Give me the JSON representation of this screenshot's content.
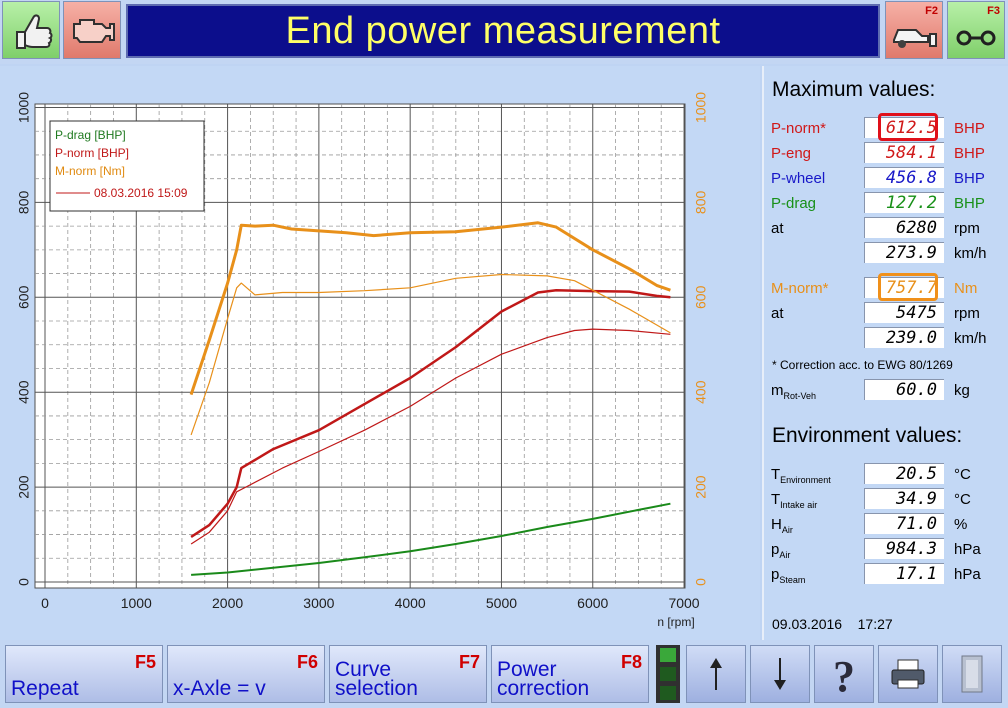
{
  "header": {
    "title": "End power measurement",
    "f2_key": "F2",
    "f3_key": "F3",
    "icons": [
      "thumbs-up-icon",
      "engine-icon",
      "car-on-dyno-icon",
      "roller-icon"
    ]
  },
  "chart_data": {
    "type": "line",
    "xlabel": "n [rpm]",
    "x_ticks": [
      "0",
      "1000",
      "2000",
      "3000",
      "4000",
      "5000",
      "6000",
      "7000"
    ],
    "y_left_ticks": [
      "0",
      "200",
      "400",
      "600",
      "800",
      "1000"
    ],
    "y_right_ticks": [
      "0",
      "200",
      "400",
      "600",
      "800",
      "1000"
    ],
    "xlim": [
      0,
      7000
    ],
    "ylim": [
      0,
      1000
    ],
    "grid": true,
    "legend_position": "top-left",
    "legend": [
      {
        "label": "P-drag [BHP]",
        "color": "#207a20"
      },
      {
        "label": "P-norm [BHP]",
        "color": "#c01818"
      },
      {
        "label": "M-norm [Nm]",
        "color": "#e08a10"
      }
    ],
    "legend_note": "08.03.2016 15:09",
    "series": [
      {
        "name": "P-drag [BHP]",
        "color": "#1a8a1a",
        "width": 2,
        "x": [
          1600,
          2000,
          2500,
          3000,
          3500,
          4000,
          4500,
          5000,
          5500,
          6000,
          6500,
          6850
        ],
        "y": [
          15,
          20,
          30,
          40,
          52,
          65,
          80,
          97,
          116,
          133,
          152,
          165
        ]
      },
      {
        "name": "P-norm [BHP]",
        "color": "#c01818",
        "width": 2.5,
        "x": [
          1600,
          1800,
          2000,
          2100,
          2150,
          2500,
          3000,
          3500,
          4000,
          4500,
          5000,
          5400,
          5600,
          6000,
          6400,
          6700,
          6850
        ],
        "y": [
          95,
          120,
          165,
          200,
          240,
          280,
          320,
          375,
          430,
          495,
          570,
          610,
          615,
          613,
          612,
          603,
          600
        ]
      },
      {
        "name": "M-norm [Nm]",
        "color": "#e8901a",
        "width": 3,
        "x": [
          1600,
          1800,
          2000,
          2100,
          2150,
          2300,
          2500,
          2700,
          3000,
          3300,
          3600,
          4000,
          4500,
          5000,
          5400,
          5600,
          6000,
          6400,
          6700,
          6850
        ],
        "y": [
          395,
          510,
          630,
          700,
          752,
          750,
          752,
          744,
          740,
          736,
          730,
          736,
          738,
          748,
          757,
          748,
          700,
          660,
          625,
          615
        ]
      },
      {
        "name": "P-norm [BHP] 08.03.2016",
        "color": "#c01818",
        "width": 1.2,
        "x": [
          1600,
          1800,
          2000,
          2100,
          2200,
          2600,
          3000,
          3500,
          4000,
          4500,
          5000,
          5500,
          5800,
          6000,
          6400,
          6850
        ],
        "y": [
          80,
          105,
          150,
          190,
          200,
          240,
          275,
          320,
          370,
          430,
          480,
          515,
          530,
          533,
          530,
          522
        ]
      },
      {
        "name": "M-norm [Nm] 08.03.2016",
        "color": "#e8901a",
        "width": 1.2,
        "x": [
          1600,
          1800,
          2000,
          2100,
          2150,
          2300,
          2600,
          3000,
          3500,
          4000,
          4500,
          5000,
          5500,
          5800,
          6000,
          6400,
          6850
        ],
        "y": [
          310,
          420,
          555,
          620,
          630,
          605,
          610,
          610,
          614,
          620,
          640,
          648,
          645,
          635,
          615,
          575,
          525
        ]
      }
    ]
  },
  "max_values": {
    "title": "Maximum values:",
    "rows": [
      {
        "label": "P-norm*",
        "value": "612.5",
        "unit": "BHP",
        "color": "#d01818",
        "highlight": "#e0101a"
      },
      {
        "label": "P-eng",
        "value": "584.1",
        "unit": "BHP",
        "color": "#d01818"
      },
      {
        "label": "P-wheel",
        "value": "456.8",
        "unit": "BHP",
        "color": "#1818c8"
      },
      {
        "label": "P-drag",
        "value": "127.2",
        "unit": "BHP",
        "color": "#189018"
      },
      {
        "label": "at",
        "value": "6280",
        "unit": "rpm",
        "color": "#000000"
      },
      {
        "label": "",
        "value": "273.9",
        "unit": "km/h",
        "color": "#000000"
      },
      {
        "label": "M-norm*",
        "value": "757.7",
        "unit": "Nm",
        "color": "#e8901a",
        "highlight": "#f0901a"
      },
      {
        "label": "at",
        "value": "5475",
        "unit": "rpm",
        "color": "#000000"
      },
      {
        "label": "",
        "value": "239.0",
        "unit": "km/h",
        "color": "#000000"
      }
    ],
    "note": "* Correction acc. to EWG 80/1269",
    "mrot": {
      "label_main": "m",
      "label_sub": "Rot-Veh",
      "value": "60.0",
      "unit": "kg"
    }
  },
  "environment": {
    "title": "Environment values:",
    "rows": [
      {
        "label_main": "T",
        "label_sub": "Environment",
        "value": "20.5",
        "unit": "°C"
      },
      {
        "label_main": "T",
        "label_sub": "Intake air",
        "value": "34.9",
        "unit": "°C"
      },
      {
        "label_main": "H",
        "label_sub": "Air",
        "value": "71.0",
        "unit": "%"
      },
      {
        "label_main": "p",
        "label_sub": "Air",
        "value": "984.3",
        "unit": "hPa"
      },
      {
        "label_main": "p",
        "label_sub": "Steam",
        "value": "17.1",
        "unit": "hPa"
      }
    ]
  },
  "datetime": {
    "date": "09.03.2016",
    "time": "17:27"
  },
  "footer": {
    "buttons": [
      {
        "label": "Repeat",
        "key": "F5"
      },
      {
        "label": "x-Axle = v",
        "key": "F6"
      },
      {
        "label": "Curve selection",
        "key": "F7"
      },
      {
        "label": "Power correction",
        "key": "F8"
      }
    ],
    "icons": [
      "traffic-light-icon",
      "arrow-up-icon",
      "arrow-down-icon",
      "help-icon",
      "printer-icon",
      "door-exit-icon"
    ]
  }
}
